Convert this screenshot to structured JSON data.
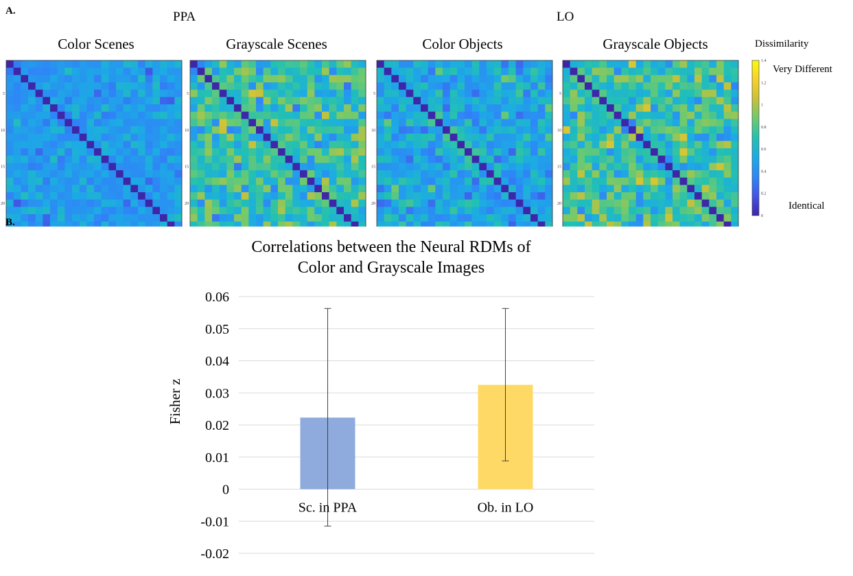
{
  "panel_a": {
    "letter": "A.",
    "regions": [
      "PPA",
      "LO"
    ],
    "matrix_titles": [
      "Color Scenes",
      "Grayscale Scenes",
      "Color Objects",
      "Grayscale Objects"
    ],
    "colorbar": {
      "title": "Dissimilarity",
      "high_label": "Very Different",
      "low_label": "Identical",
      "min": 0,
      "max": 1.4,
      "ticks": [
        "0",
        "0.2",
        "0.4",
        "0.6",
        "0.8",
        "1",
        "1.2",
        "1.4"
      ],
      "colormap": [
        "#3e26a8",
        "#4354e6",
        "#2e87f7",
        "#1cabe4",
        "#22c0b4",
        "#6cca70",
        "#c7c13a",
        "#f6d029",
        "#f9fb0e"
      ]
    },
    "matrix_ticks": [
      "5",
      "10",
      "15",
      "20"
    ]
  },
  "panel_b": {
    "letter": "B."
  },
  "chart_data": {
    "type": "bar",
    "title": "Correlations between the Neural RDMs of Color and Grayscale Images",
    "title_lines": [
      "Correlations between the Neural RDMs of",
      "Color and Grayscale Images"
    ],
    "ylabel": "Fisher z",
    "xlabel": "",
    "categories": [
      "Sc. in PPA",
      "Ob. in LO"
    ],
    "values": [
      0.0223,
      0.0325
    ],
    "error_low": [
      -0.0115,
      0.0088
    ],
    "error_high": [
      0.0563,
      0.0563
    ],
    "colors": [
      "#8faadc",
      "#ffd966"
    ],
    "ylim": [
      -0.02,
      0.06
    ],
    "yticks": [
      "0.06",
      "0.05",
      "0.04",
      "0.03",
      "0.02",
      "0.01",
      "0",
      "-0.01",
      "-0.02"
    ],
    "grid": true
  }
}
